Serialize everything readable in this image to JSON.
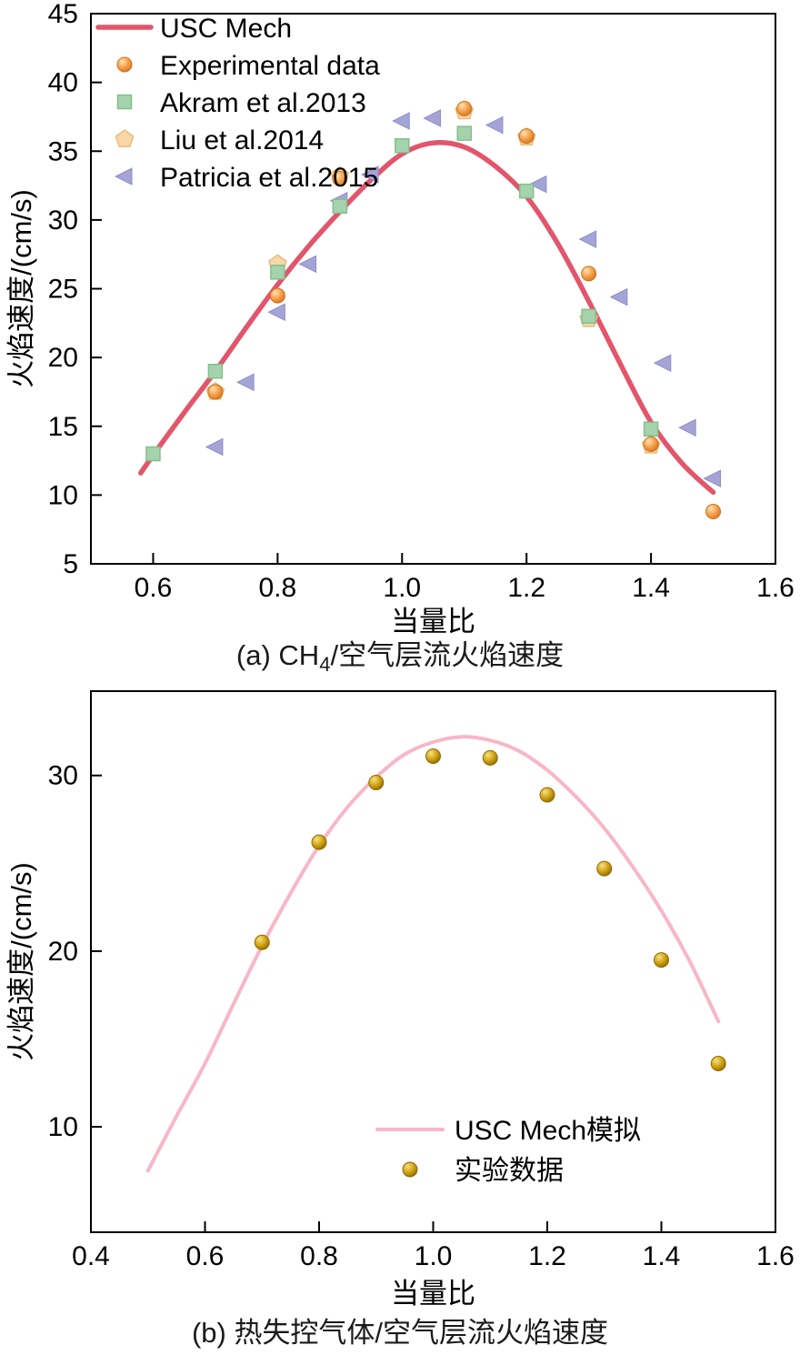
{
  "captions": {
    "a_prefix": "(a) CH",
    "a_sub": "4",
    "a_suffix": "/空气层流火焰速度",
    "b": "(b) 热失控气体/空气层流火焰速度"
  },
  "marker_styles": {
    "sphere-orange": {
      "fill": "#f5a04c",
      "highlight": "#ffe2b0",
      "edge": "#c9751f"
    },
    "sphere-gold": {
      "fill": "#d2a312",
      "highlight": "#f6e084",
      "edge": "#8f6c07"
    },
    "square": {
      "fill": "#a5d3ab",
      "edge": "#84bf8e"
    },
    "pentagon": {
      "fill": "#f8d7a8",
      "edge": "#ecba77"
    },
    "triangle-left": {
      "fill": "#a5a4d7",
      "edge": "#8f8ec7"
    }
  },
  "chart_data": [
    {
      "id": "chart-a",
      "type": "line+scatter",
      "title": "",
      "xlabel": "当量比",
      "ylabel": "火焰速度/(cm/s)",
      "xlim": [
        0.5,
        1.6
      ],
      "ylim": [
        5,
        45
      ],
      "xticks": [
        0.6,
        0.8,
        1.0,
        1.2,
        1.4,
        1.6
      ],
      "yticks": [
        5,
        10,
        15,
        20,
        25,
        30,
        35,
        40,
        45
      ],
      "x_tick_decimals": 1,
      "grid": false,
      "legend_position": "top-left",
      "line_series": [
        {
          "name": "USC Mech",
          "color": "#e2556b",
          "width": 5.5,
          "points": [
            [
              0.58,
              11.6
            ],
            [
              0.6,
              12.9
            ],
            [
              0.65,
              16.0
            ],
            [
              0.7,
              19.0
            ],
            [
              0.75,
              22.2
            ],
            [
              0.8,
              25.3
            ],
            [
              0.85,
              28.1
            ],
            [
              0.9,
              30.6
            ],
            [
              0.95,
              32.9
            ],
            [
              1.0,
              34.8
            ],
            [
              1.05,
              35.6
            ],
            [
              1.1,
              35.3
            ],
            [
              1.15,
              33.9
            ],
            [
              1.2,
              31.7
            ],
            [
              1.25,
              28.3
            ],
            [
              1.3,
              24.1
            ],
            [
              1.35,
              19.6
            ],
            [
              1.4,
              15.3
            ],
            [
              1.45,
              12.3
            ],
            [
              1.5,
              10.2
            ]
          ]
        }
      ],
      "scatter_series": [
        {
          "name": "Experimental data",
          "marker": "sphere-orange",
          "points": [
            [
              0.7,
              17.5
            ],
            [
              0.8,
              24.5
            ],
            [
              0.9,
              33.0
            ],
            [
              1.1,
              38.1
            ],
            [
              1.2,
              36.1
            ],
            [
              1.3,
              26.1
            ],
            [
              1.4,
              13.7
            ],
            [
              1.5,
              8.8
            ]
          ]
        },
        {
          "name": "Akram et al.2013",
          "marker": "square",
          "points": [
            [
              0.6,
              13.0
            ],
            [
              0.7,
              19.0
            ],
            [
              0.8,
              26.2
            ],
            [
              0.9,
              31.0
            ],
            [
              1.0,
              35.4
            ],
            [
              1.1,
              36.3
            ],
            [
              1.2,
              32.1
            ],
            [
              1.3,
              23.0
            ],
            [
              1.4,
              14.8
            ]
          ]
        },
        {
          "name": "Liu et al.2014",
          "marker": "pentagon",
          "points": [
            [
              0.7,
              17.5
            ],
            [
              0.8,
              26.8
            ],
            [
              0.9,
              33.2
            ],
            [
              1.1,
              37.9
            ],
            [
              1.2,
              36.0
            ],
            [
              1.3,
              22.8
            ],
            [
              1.4,
              13.6
            ]
          ]
        },
        {
          "name": "Patricia et al.2015",
          "marker": "triangle-left",
          "points": [
            [
              0.7,
              13.5
            ],
            [
              0.75,
              18.2
            ],
            [
              0.8,
              23.3
            ],
            [
              0.85,
              26.8
            ],
            [
              0.9,
              31.4
            ],
            [
              0.95,
              33.3
            ],
            [
              1.0,
              37.2
            ],
            [
              1.05,
              37.4
            ],
            [
              1.15,
              36.9
            ],
            [
              1.22,
              32.6
            ],
            [
              1.3,
              28.6
            ],
            [
              1.35,
              24.4
            ],
            [
              1.42,
              19.6
            ],
            [
              1.46,
              14.9
            ],
            [
              1.5,
              11.2
            ]
          ]
        }
      ]
    },
    {
      "id": "chart-b",
      "type": "line+scatter",
      "title": "",
      "xlabel": "当量比",
      "ylabel": "火焰速度/(cm/s)",
      "xlim": [
        0.4,
        1.6
      ],
      "ylim": [
        4,
        34.8
      ],
      "xticks": [
        0.4,
        0.6,
        0.8,
        1.0,
        1.2,
        1.4,
        1.6
      ],
      "yticks": [
        10,
        20,
        30
      ],
      "x_tick_decimals": 1,
      "grid": false,
      "legend_position": "inside-bottom-right",
      "line_series": [
        {
          "name": "USC Mech模拟",
          "color": "#f8b6c6",
          "width": 4,
          "points": [
            [
              0.5,
              7.5
            ],
            [
              0.55,
              10.6
            ],
            [
              0.6,
              13.6
            ],
            [
              0.65,
              17.0
            ],
            [
              0.7,
              20.3
            ],
            [
              0.75,
              23.3
            ],
            [
              0.8,
              26.0
            ],
            [
              0.85,
              28.2
            ],
            [
              0.9,
              29.9
            ],
            [
              0.95,
              31.2
            ],
            [
              1.0,
              31.9
            ],
            [
              1.05,
              32.2
            ],
            [
              1.1,
              32.0
            ],
            [
              1.15,
              31.4
            ],
            [
              1.2,
              30.3
            ],
            [
              1.25,
              28.8
            ],
            [
              1.3,
              27.0
            ],
            [
              1.35,
              24.8
            ],
            [
              1.4,
              22.3
            ],
            [
              1.45,
              19.4
            ],
            [
              1.5,
              16.0
            ]
          ]
        }
      ],
      "scatter_series": [
        {
          "name": "实验数据",
          "marker": "sphere-gold",
          "points": [
            [
              0.7,
              20.5
            ],
            [
              0.8,
              26.2
            ],
            [
              0.9,
              29.6
            ],
            [
              1.0,
              31.1
            ],
            [
              1.1,
              31.0
            ],
            [
              1.2,
              28.9
            ],
            [
              1.3,
              24.7
            ],
            [
              1.4,
              19.5
            ],
            [
              1.5,
              13.6
            ]
          ]
        }
      ]
    }
  ]
}
